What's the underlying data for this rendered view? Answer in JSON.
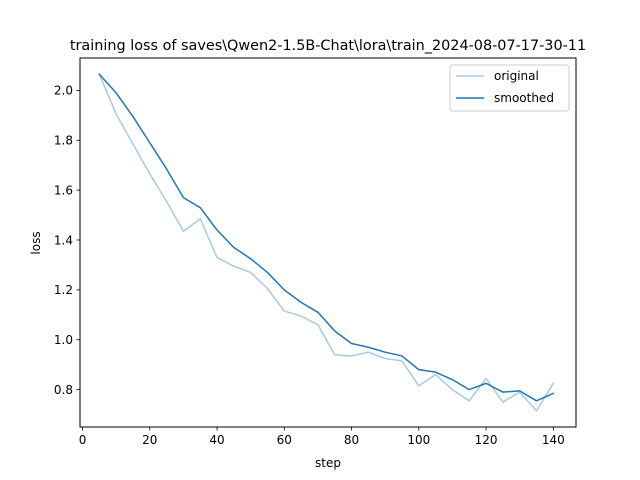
{
  "chart_data": {
    "type": "line",
    "title": "training loss of saves\\Qwen2-1.5B-Chat\\lora\\train_2024-08-07-17-30-11",
    "xlabel": "step",
    "ylabel": "loss",
    "xlim": [
      -0.75,
      146.75
    ],
    "ylim": [
      0.65,
      2.13
    ],
    "xticks": [
      0,
      20,
      40,
      60,
      80,
      100,
      120,
      140
    ],
    "yticks": [
      0.8,
      1.0,
      1.2,
      1.4,
      1.6,
      1.8,
      2.0
    ],
    "xtick_labels": [
      "0",
      "20",
      "40",
      "60",
      "80",
      "100",
      "120",
      "140"
    ],
    "ytick_labels": [
      "0.8",
      "1.0",
      "1.2",
      "1.4",
      "1.6",
      "1.8",
      "2.0"
    ],
    "grid": false,
    "legend_position": "upper right",
    "x": [
      5,
      10,
      15,
      20,
      25,
      30,
      35,
      40,
      45,
      50,
      55,
      60,
      65,
      70,
      75,
      80,
      85,
      90,
      95,
      100,
      105,
      110,
      115,
      120,
      125,
      130,
      135,
      140
    ],
    "series": [
      {
        "name": "original",
        "color": "#a6cae3",
        "values": [
          2.065,
          1.905,
          1.785,
          1.665,
          1.555,
          1.435,
          1.485,
          1.33,
          1.295,
          1.27,
          1.205,
          1.115,
          1.095,
          1.06,
          0.94,
          0.935,
          0.95,
          0.925,
          0.915,
          0.815,
          0.86,
          0.8,
          0.755,
          0.845,
          0.75,
          0.79,
          0.715,
          0.825
        ]
      },
      {
        "name": "smoothed",
        "color": "#1f77b4",
        "values": [
          2.065,
          1.99,
          1.895,
          1.79,
          1.685,
          1.57,
          1.53,
          1.44,
          1.37,
          1.325,
          1.27,
          1.2,
          1.15,
          1.11,
          1.035,
          0.985,
          0.97,
          0.95,
          0.935,
          0.88,
          0.87,
          0.84,
          0.8,
          0.825,
          0.79,
          0.795,
          0.755,
          0.785
        ]
      }
    ]
  }
}
